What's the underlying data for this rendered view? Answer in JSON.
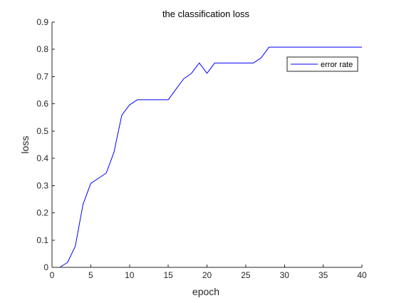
{
  "chart_data": {
    "type": "line",
    "title": "the classification loss",
    "xlabel": "epoch",
    "ylabel": "loss",
    "xlim": [
      0,
      40
    ],
    "ylim": [
      0,
      0.9
    ],
    "xticks": [
      0,
      5,
      10,
      15,
      20,
      25,
      30,
      35,
      40
    ],
    "yticks": [
      0,
      0.1,
      0.2,
      0.3,
      0.4,
      0.5,
      0.6,
      0.7,
      0.8,
      0.9
    ],
    "xtick_labels": [
      "0",
      "5",
      "10",
      "15",
      "20",
      "25",
      "30",
      "35",
      "40"
    ],
    "ytick_labels": [
      "0",
      "0.1",
      "0.2",
      "0.3",
      "0.4",
      "0.5",
      "0.6",
      "0.7",
      "0.8",
      "0.9"
    ],
    "grid": false,
    "legend_position": "top-right",
    "series": [
      {
        "name": "error rate",
        "color": "#0000ff",
        "x": [
          1,
          2,
          3,
          4,
          5,
          6,
          7,
          8,
          9,
          10,
          11,
          12,
          13,
          14,
          15,
          16,
          17,
          18,
          19,
          20,
          21,
          22,
          23,
          24,
          25,
          26,
          27,
          28,
          29,
          30,
          31,
          32,
          33,
          34,
          35,
          36,
          37,
          38,
          39,
          40
        ],
        "y": [
          0.0,
          0.018,
          0.077,
          0.231,
          0.308,
          0.327,
          0.346,
          0.423,
          0.558,
          0.596,
          0.615,
          0.615,
          0.615,
          0.615,
          0.615,
          0.654,
          0.692,
          0.712,
          0.75,
          0.712,
          0.75,
          0.75,
          0.75,
          0.75,
          0.75,
          0.75,
          0.769,
          0.808,
          0.808,
          0.808,
          0.808,
          0.808,
          0.808,
          0.808,
          0.808,
          0.808,
          0.808,
          0.808,
          0.808,
          0.808
        ]
      }
    ]
  }
}
